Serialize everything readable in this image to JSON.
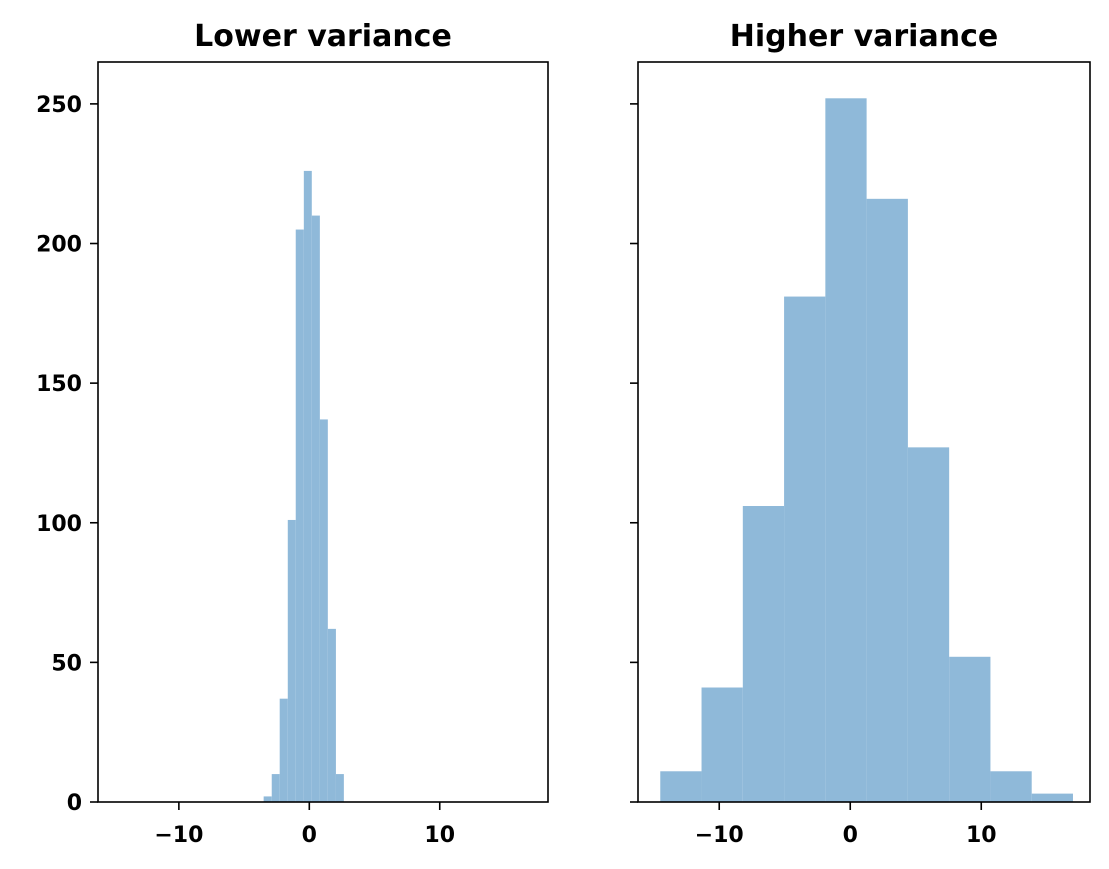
{
  "chart_data": [
    {
      "type": "histogram",
      "title": "Lower variance",
      "xlabel": "",
      "ylabel": "",
      "xlim": [
        -16.2,
        18.3
      ],
      "ylim": [
        0,
        265
      ],
      "xticks": [
        -10,
        0,
        10
      ],
      "xtick_labels": [
        "−10",
        "0",
        "10"
      ],
      "yticks": [
        0,
        50,
        100,
        150,
        200,
        250
      ],
      "ytick_labels": [
        "0",
        "50",
        "100",
        "150",
        "200",
        "250"
      ],
      "show_ytick_labels": true,
      "grid": false,
      "bar_color": "#8fb9d9",
      "bin_edges": [
        -3.5,
        -2.88,
        -2.27,
        -1.65,
        -1.04,
        -0.42,
        0.19,
        0.81,
        1.42,
        2.04,
        2.65
      ],
      "counts": [
        2,
        10,
        37,
        101,
        205,
        226,
        210,
        137,
        62,
        10
      ]
    },
    {
      "type": "histogram",
      "title": "Higher variance",
      "xlabel": "",
      "ylabel": "",
      "xlim": [
        -16.2,
        18.3
      ],
      "ylim": [
        0,
        265
      ],
      "xticks": [
        -10,
        0,
        10
      ],
      "xtick_labels": [
        "−10",
        "0",
        "10"
      ],
      "yticks": [
        0,
        50,
        100,
        150,
        200,
        250
      ],
      "ytick_labels": [
        "",
        "",
        "",
        "",
        "",
        ""
      ],
      "show_ytick_labels": false,
      "grid": false,
      "bar_color": "#8fb9d9",
      "bin_edges": [
        -14.5,
        -11.35,
        -8.2,
        -5.05,
        -1.9,
        1.25,
        4.4,
        7.55,
        10.7,
        13.85,
        17.0
      ],
      "counts": [
        11,
        41,
        106,
        181,
        252,
        216,
        127,
        52,
        11,
        3
      ]
    }
  ]
}
